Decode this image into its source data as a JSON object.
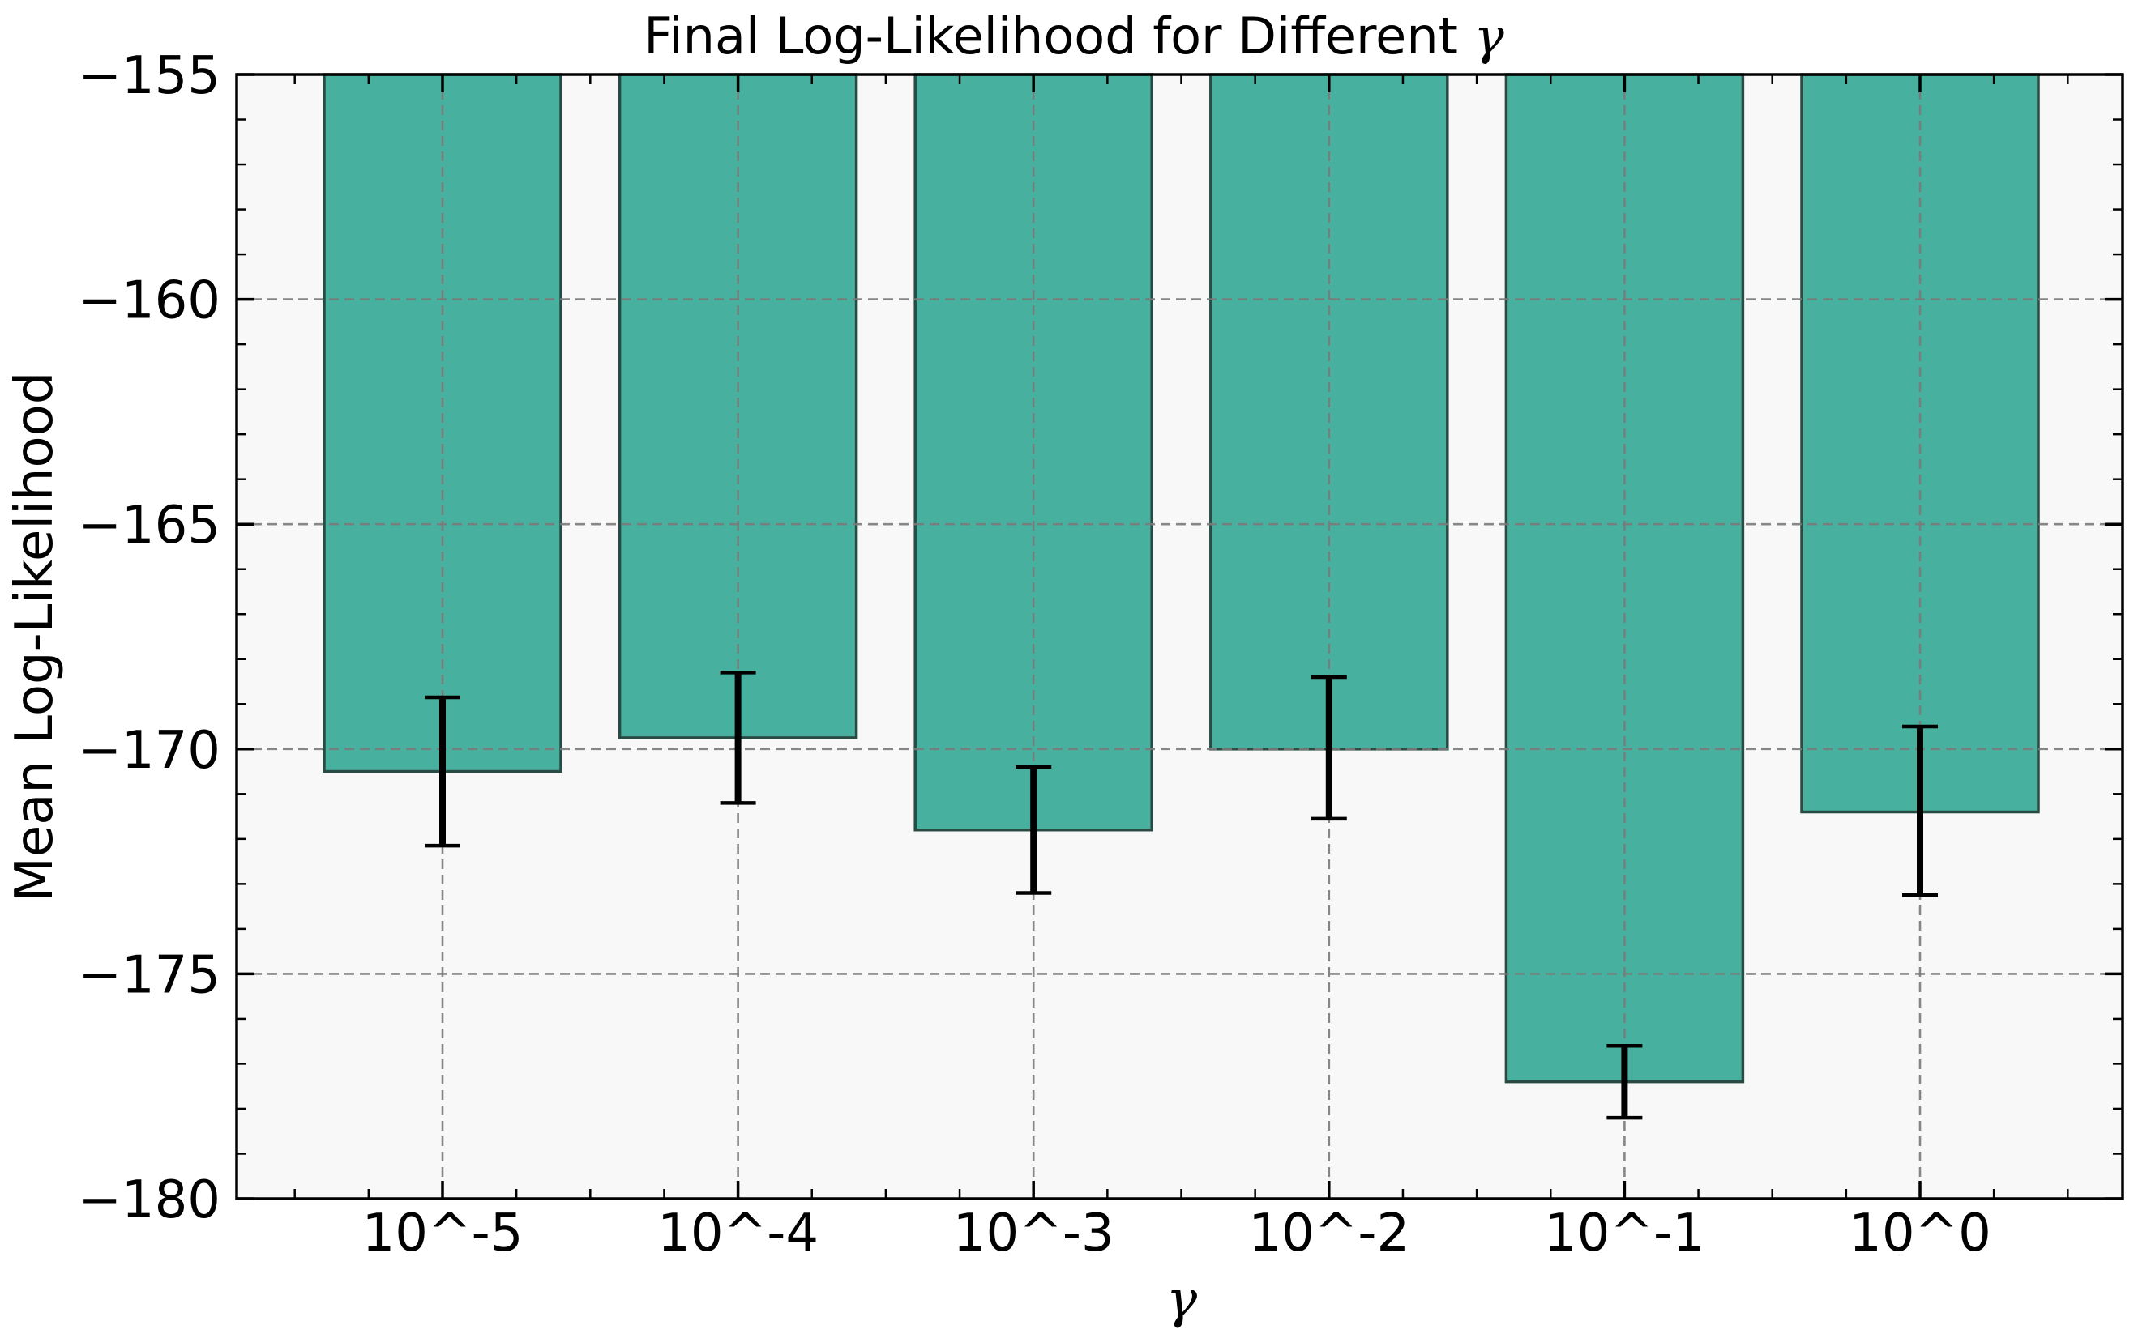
{
  "chart_data": {
    "type": "bar",
    "title": "Final Log-Likelihood for Different ",
    "title_symbol": "γ",
    "xlabel": "γ",
    "ylabel": "Mean Log-Likelihood",
    "categories": [
      "10^-5",
      "10^-4",
      "10^-3",
      "10^-2",
      "10^-1",
      "10^0"
    ],
    "values": [
      -170.5,
      -169.75,
      -171.8,
      -170.0,
      -177.4,
      -171.4
    ],
    "error_low": [
      -172.15,
      -171.2,
      -173.2,
      -171.55,
      -178.2,
      -173.25
    ],
    "error_high": [
      -168.85,
      -168.3,
      -170.4,
      -168.4,
      -176.6,
      -169.5
    ],
    "ylim": [
      -180,
      -155
    ],
    "yticks": [
      -155,
      -160,
      -165,
      -170,
      -175,
      -180
    ],
    "ytick_labels": [
      "−155",
      "−160",
      "−165",
      "−170",
      "−175",
      "−180"
    ],
    "grid": true,
    "colors": {
      "bar_fill": "#48b09e",
      "bar_edge": "#2a4a44",
      "plot_background": "#f8f8f8",
      "grid": "#7a7a7a",
      "error_bar": "#000000"
    }
  }
}
